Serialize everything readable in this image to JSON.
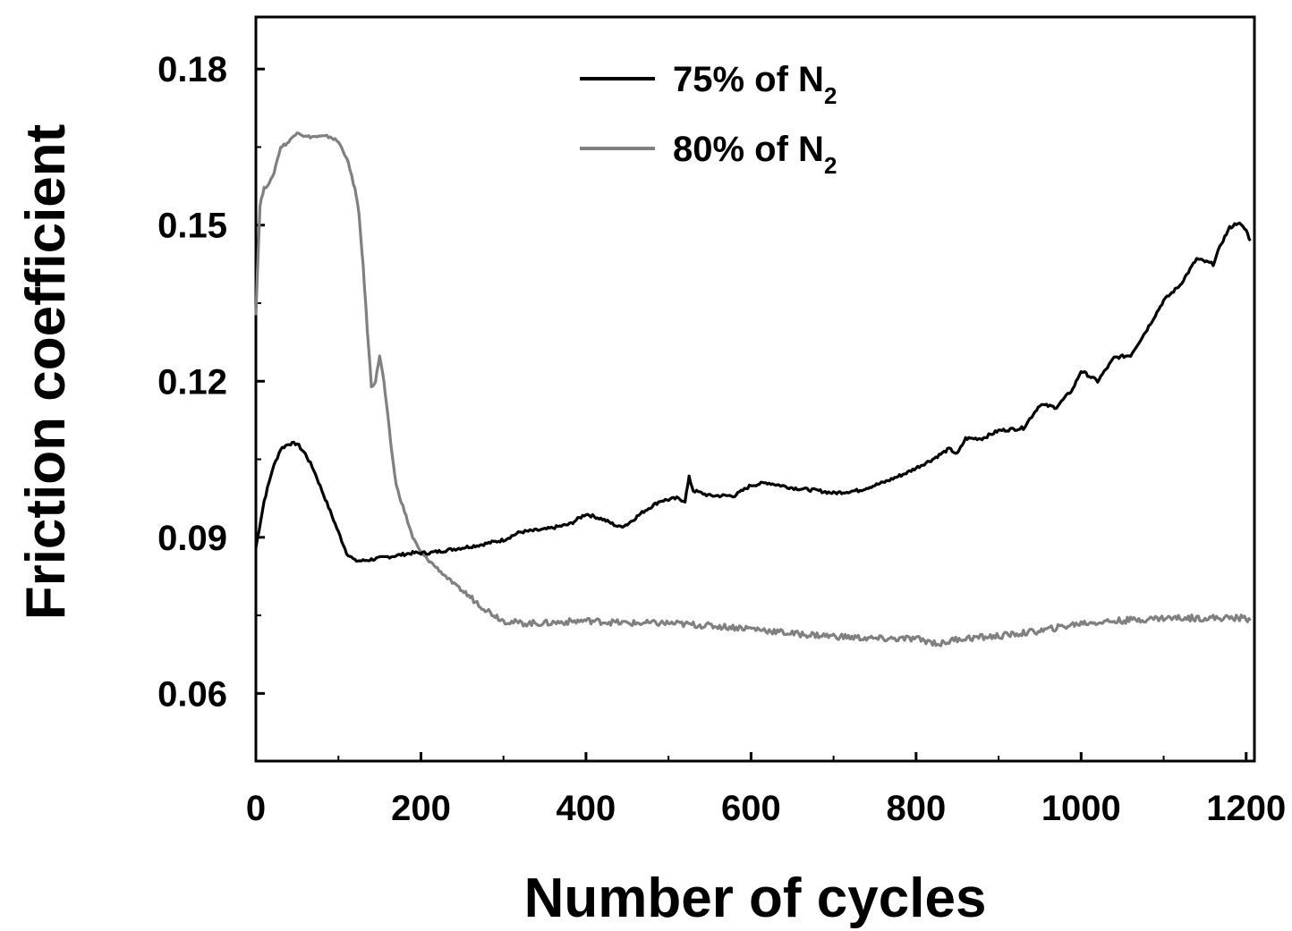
{
  "chart_data": {
    "type": "line",
    "title": "",
    "xlabel": "Number of cycles",
    "ylabel": "Friction coefficient",
    "xlim": [
      0,
      1210
    ],
    "ylim": [
      0.047,
      0.19
    ],
    "x_ticks": [
      0,
      200,
      400,
      600,
      800,
      1000,
      1200
    ],
    "x_tick_labels": [
      "0",
      "200",
      "400",
      "600",
      "800",
      "1000",
      "1200"
    ],
    "y_ticks": [
      0.06,
      0.09,
      0.12,
      0.15,
      0.18
    ],
    "y_tick_labels": [
      "0.06",
      "0.09",
      "0.12",
      "0.15",
      "0.18"
    ],
    "grid": false,
    "legend_position": "top-center",
    "series": [
      {
        "name": "75% of N2",
        "legend_main": "75% of N",
        "legend_sub": "2",
        "color": "#000000",
        "x": [
          0,
          10,
          20,
          30,
          40,
          50,
          60,
          70,
          80,
          90,
          100,
          110,
          120,
          130,
          150,
          170,
          190,
          210,
          230,
          250,
          270,
          300,
          320,
          350,
          380,
          400,
          420,
          440,
          450,
          470,
          490,
          510,
          520,
          525,
          530,
          550,
          580,
          600,
          620,
          650,
          680,
          700,
          730,
          760,
          790,
          820,
          840,
          850,
          860,
          880,
          900,
          930,
          950,
          970,
          990,
          1000,
          1020,
          1040,
          1060,
          1080,
          1100,
          1120,
          1140,
          1160,
          1170,
          1180,
          1190,
          1200,
          1205
        ],
        "y": [
          0.088,
          0.097,
          0.103,
          0.107,
          0.108,
          0.108,
          0.106,
          0.103,
          0.099,
          0.095,
          0.091,
          0.087,
          0.0855,
          0.0855,
          0.086,
          0.0865,
          0.087,
          0.087,
          0.0875,
          0.088,
          0.0885,
          0.0895,
          0.091,
          0.0915,
          0.0925,
          0.0945,
          0.0935,
          0.092,
          0.0925,
          0.095,
          0.097,
          0.0975,
          0.097,
          0.1015,
          0.099,
          0.098,
          0.098,
          0.1,
          0.1005,
          0.0995,
          0.099,
          0.0985,
          0.099,
          0.1005,
          0.1025,
          0.105,
          0.107,
          0.106,
          0.109,
          0.109,
          0.1105,
          0.111,
          0.1155,
          0.115,
          0.1185,
          0.122,
          0.12,
          0.1245,
          0.125,
          0.13,
          0.1355,
          0.1385,
          0.1435,
          0.1425,
          0.1465,
          0.1495,
          0.1505,
          0.149,
          0.147
        ]
      },
      {
        "name": "80% of N2",
        "legend_main": "80% of N",
        "legend_sub": "2",
        "color": "#808080",
        "x": [
          0,
          5,
          10,
          20,
          30,
          40,
          50,
          60,
          70,
          80,
          90,
          100,
          110,
          120,
          125,
          130,
          135,
          140,
          145,
          150,
          155,
          160,
          165,
          170,
          180,
          190,
          200,
          220,
          240,
          260,
          280,
          300,
          320,
          350,
          400,
          450,
          500,
          550,
          600,
          650,
          700,
          750,
          800,
          830,
          850,
          900,
          950,
          1000,
          1050,
          1100,
          1150,
          1200,
          1205
        ],
        "y": [
          0.133,
          0.154,
          0.157,
          0.159,
          0.165,
          0.166,
          0.168,
          0.167,
          0.167,
          0.167,
          0.167,
          0.166,
          0.163,
          0.157,
          0.152,
          0.142,
          0.13,
          0.119,
          0.12,
          0.125,
          0.12,
          0.113,
          0.106,
          0.1,
          0.095,
          0.09,
          0.087,
          0.084,
          0.081,
          0.0785,
          0.076,
          0.074,
          0.0735,
          0.0735,
          0.074,
          0.0735,
          0.0735,
          0.073,
          0.0725,
          0.0715,
          0.071,
          0.0705,
          0.0705,
          0.0695,
          0.0705,
          0.071,
          0.072,
          0.0735,
          0.074,
          0.0745,
          0.0745,
          0.0745,
          0.074
        ]
      }
    ]
  }
}
